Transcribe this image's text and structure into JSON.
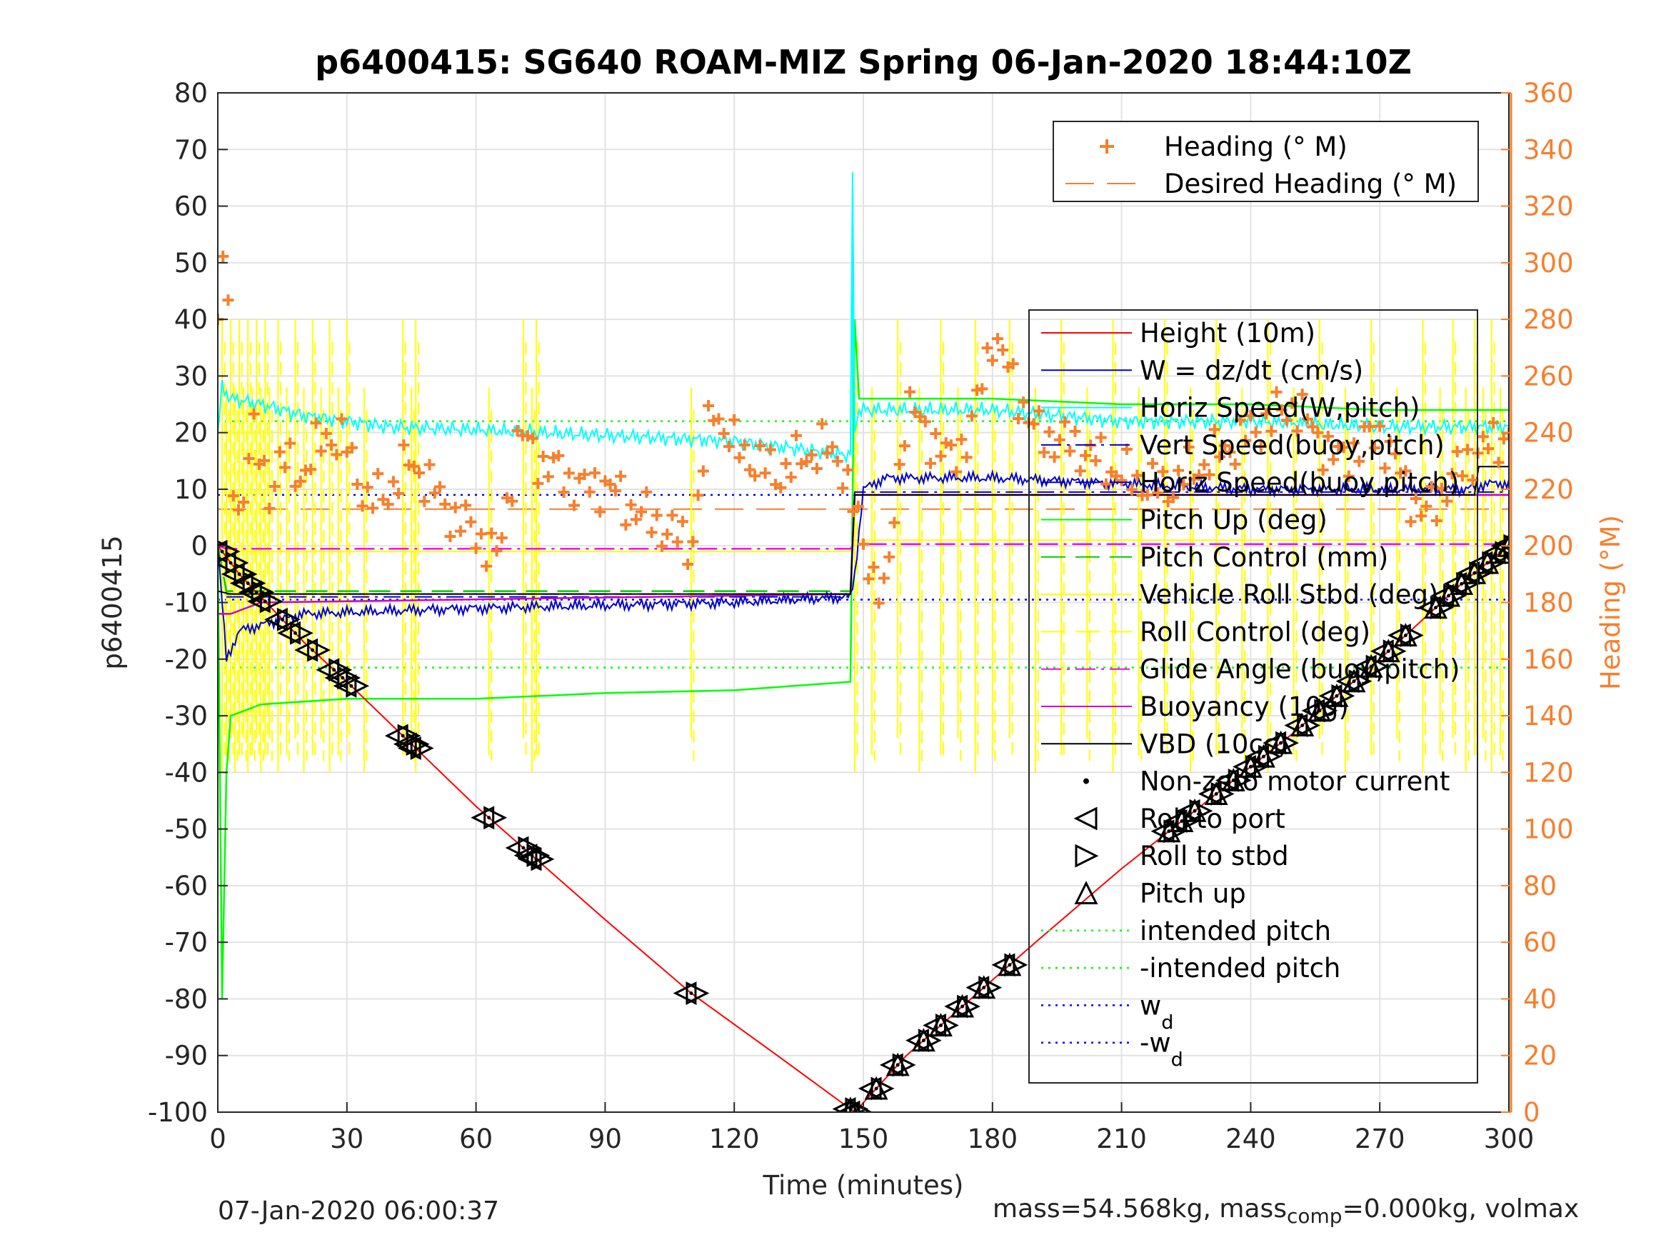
{
  "chart_data": {
    "type": "line",
    "title": "p6400415: SG640 ROAM-MIZ Spring 06-Jan-2020 18:44:10Z",
    "xlabel": "Time (minutes)",
    "ylabel": "p6400415",
    "y2label": "Heading (°M)",
    "xlim": [
      0,
      300
    ],
    "ylim": [
      -100,
      80
    ],
    "y2lim": [
      0,
      360
    ],
    "xticks": [
      "0",
      "30",
      "60",
      "90",
      "120",
      "150",
      "180",
      "210",
      "240",
      "270",
      "300"
    ],
    "yticks": [
      "80",
      "70",
      "60",
      "50",
      "40",
      "30",
      "20",
      "10",
      "0",
      "-10",
      "-20",
      "-30",
      "-40",
      "-50",
      "-60",
      "-70",
      "-80",
      "-90",
      "-100"
    ],
    "y2ticks": [
      "360",
      "340",
      "320",
      "300",
      "280",
      "260",
      "240",
      "220",
      "200",
      "180",
      "160",
      "140",
      "120",
      "100",
      "80",
      "60",
      "40",
      "20",
      "0"
    ],
    "grid": true,
    "colors": {
      "height": "#ff0000",
      "w": "#0000cc",
      "horiz_speed_w": "#00ffff",
      "vert_speed_buoy": "#0000cc",
      "horiz_speed_buoy": "#0000cc",
      "pitch_up": "#00ff00",
      "pitch_control": "#00cc00",
      "roll": "#ffff00",
      "roll_control": "#ffff00",
      "glide_angle": "#ff00ff",
      "buoyancy": "#cc00cc",
      "vbd": "#000000",
      "heading": "#f77f2d",
      "intended_pitch": "#00ff00",
      "wd": "#0000ff"
    },
    "heading_legend": [
      {
        "name": "Heading (° M)",
        "style": "plus"
      },
      {
        "name": "Desired Heading (° M)",
        "style": "dash"
      }
    ],
    "legend": [
      {
        "name": "Height (10m)",
        "style": "solid",
        "color": "#ff0000"
      },
      {
        "name": "W = dz/dt (cm/s)",
        "style": "solid",
        "color": "#0000cc"
      },
      {
        "name": "Horiz Speed(W,pitch)",
        "style": "solid",
        "color": "#00ffff"
      },
      {
        "name": "Vert Speed(buoy,pitch)",
        "style": "dashdot",
        "color": "#0000cc"
      },
      {
        "name": "Horiz Speed(buoy,pitch)",
        "style": "dash",
        "color": "#0000cc"
      },
      {
        "name": "Pitch Up (deg)",
        "style": "solid",
        "color": "#00ff00"
      },
      {
        "name": "Pitch Control (mm)",
        "style": "dash",
        "color": "#00cc00"
      },
      {
        "name": "Vehicle Roll Stbd (deg)",
        "style": "solid",
        "color": "#ffff00"
      },
      {
        "name": "Roll Control (deg)",
        "style": "dash",
        "color": "#ffff00"
      },
      {
        "name": "Glide Angle (buoy,pitch)",
        "style": "dashdot",
        "color": "#ff00ff"
      },
      {
        "name": "Buoyancy (10g)",
        "style": "solid",
        "color": "#cc00cc"
      },
      {
        "name": "VBD (10cc)",
        "style": "solid",
        "color": "#000000"
      },
      {
        "name": "Non-zero motor current",
        "style": "dot",
        "color": "#000000"
      },
      {
        "name": "Roll to port",
        "style": "tri-left",
        "color": "#000000"
      },
      {
        "name": "Roll to stbd",
        "style": "tri-right",
        "color": "#000000"
      },
      {
        "name": "Pitch up",
        "style": "tri-up",
        "color": "#000000"
      },
      {
        "name": "intended pitch",
        "style": "dotted",
        "color": "#00ff00"
      },
      {
        "name": "-intended pitch",
        "style": "dotted",
        "color": "#00ff00"
      },
      {
        "name": "w",
        "sub": "d",
        "style": "dotted",
        "color": "#0000ff"
      },
      {
        "name": "-w",
        "sub": "d",
        "style": "dotted",
        "color": "#0000ff"
      }
    ],
    "height_series": {
      "x": [
        0,
        5,
        10,
        20,
        30,
        45,
        60,
        75,
        90,
        110,
        130,
        148,
        160,
        175,
        190,
        210,
        230,
        250,
        270,
        290,
        300
      ],
      "y": [
        0,
        -5,
        -9,
        -17,
        -24,
        -35,
        -46,
        -56,
        -66,
        -79,
        -90,
        -100,
        -90,
        -80,
        -70,
        -57,
        -45,
        -33,
        -20,
        -6,
        0
      ]
    },
    "w_series": {
      "x": [
        0,
        2,
        5,
        20,
        40,
        60,
        90,
        120,
        147,
        148,
        150,
        155,
        180,
        210,
        240,
        270,
        290,
        295,
        300
      ],
      "y": [
        0,
        -20,
        -15,
        -12,
        -11.5,
        -11,
        -10.5,
        -10,
        -9,
        -5,
        10,
        12,
        12,
        11,
        10,
        10,
        10,
        11,
        11
      ]
    },
    "horiz_speed_series": {
      "x": [
        0,
        1,
        3,
        10,
        20,
        40,
        60,
        90,
        120,
        147,
        147.5,
        148,
        149,
        152,
        180,
        210,
        240,
        270,
        300
      ],
      "y": [
        20,
        28,
        26,
        25,
        23,
        21,
        20.5,
        19.5,
        18.5,
        16,
        66,
        20,
        24,
        24,
        24,
        22,
        22,
        21,
        21
      ]
    },
    "pitch_series": {
      "x": [
        0,
        1,
        2,
        3,
        10,
        30,
        60,
        90,
        120,
        147,
        148,
        149,
        152,
        180,
        210,
        240,
        270,
        300
      ],
      "y": [
        0,
        -80,
        -40,
        -30,
        -28,
        -27,
        -27,
        -26,
        -25.5,
        -24,
        40,
        26,
        26,
        26,
        25,
        25,
        24,
        24
      ]
    },
    "pitch_control_series": {
      "x": [
        0,
        2,
        147,
        148,
        300
      ],
      "y": [
        0,
        -8,
        -8,
        9,
        9
      ]
    },
    "roll_base_series": {
      "x": [
        0,
        147,
        148,
        300
      ],
      "y": [
        -1,
        -1,
        1,
        1
      ]
    },
    "glide_series": {
      "x": [
        0,
        2,
        147,
        148,
        300
      ],
      "y": [
        0,
        -0.5,
        -0.5,
        0.3,
        0.3
      ]
    },
    "buoyancy_series": {
      "x": [
        0,
        3,
        10,
        147,
        148,
        300
      ],
      "y": [
        -12,
        -12,
        -10,
        -8.5,
        9,
        9
      ]
    },
    "vbd_series": {
      "x": [
        0,
        3,
        147,
        148,
        292,
        293,
        300
      ],
      "y": [
        -8,
        -8.5,
        -8.5,
        9,
        9,
        14,
        14
      ]
    },
    "intended_pitch": [
      22,
      -21.5
    ],
    "wd": [
      9,
      -9.5
    ],
    "desired_heading": 213,
    "heading_points": {
      "x": [
        0,
        1,
        2,
        3,
        5,
        8,
        12,
        15,
        20,
        25,
        30,
        35,
        40,
        45,
        50,
        55,
        60,
        65,
        70,
        75,
        80,
        85,
        90,
        95,
        100,
        105,
        110,
        115,
        120,
        125,
        130,
        135,
        140,
        145,
        150,
        155,
        160,
        165,
        170,
        175,
        180,
        190,
        200,
        210,
        220,
        230,
        240,
        250,
        260,
        270,
        280,
        290,
        300
      ],
      "y": [
        280,
        300,
        310,
        230,
        210,
        240,
        220,
        230,
        225,
        240,
        235,
        215,
        220,
        230,
        220,
        210,
        205,
        195,
        240,
        230,
        225,
        220,
        222,
        215,
        210,
        205,
        200,
        250,
        235,
        230,
        225,
        230,
        235,
        230,
        200,
        180,
        250,
        240,
        230,
        240,
        275,
        240,
        235,
        225,
        220,
        230,
        240,
        250,
        230,
        240,
        210,
        230,
        240
      ]
    },
    "marker_times": [
      1,
      3,
      5,
      7,
      9,
      11,
      15,
      18,
      22,
      27,
      29,
      31,
      43,
      45,
      46,
      63,
      71,
      73,
      74,
      110,
      147,
      148,
      153,
      158,
      164,
      168,
      173,
      178,
      184,
      221,
      224,
      227,
      232,
      236,
      240,
      243,
      247,
      252,
      256,
      260,
      264,
      268,
      272,
      276,
      283,
      286,
      289,
      292,
      295,
      298,
      300
    ]
  },
  "footer": {
    "left": "07-Jan-2020 06:00:37",
    "right": "mass=54.568kg, mass",
    "right_sub": "comp",
    "right_tail": "=0.000kg, volmax"
  }
}
